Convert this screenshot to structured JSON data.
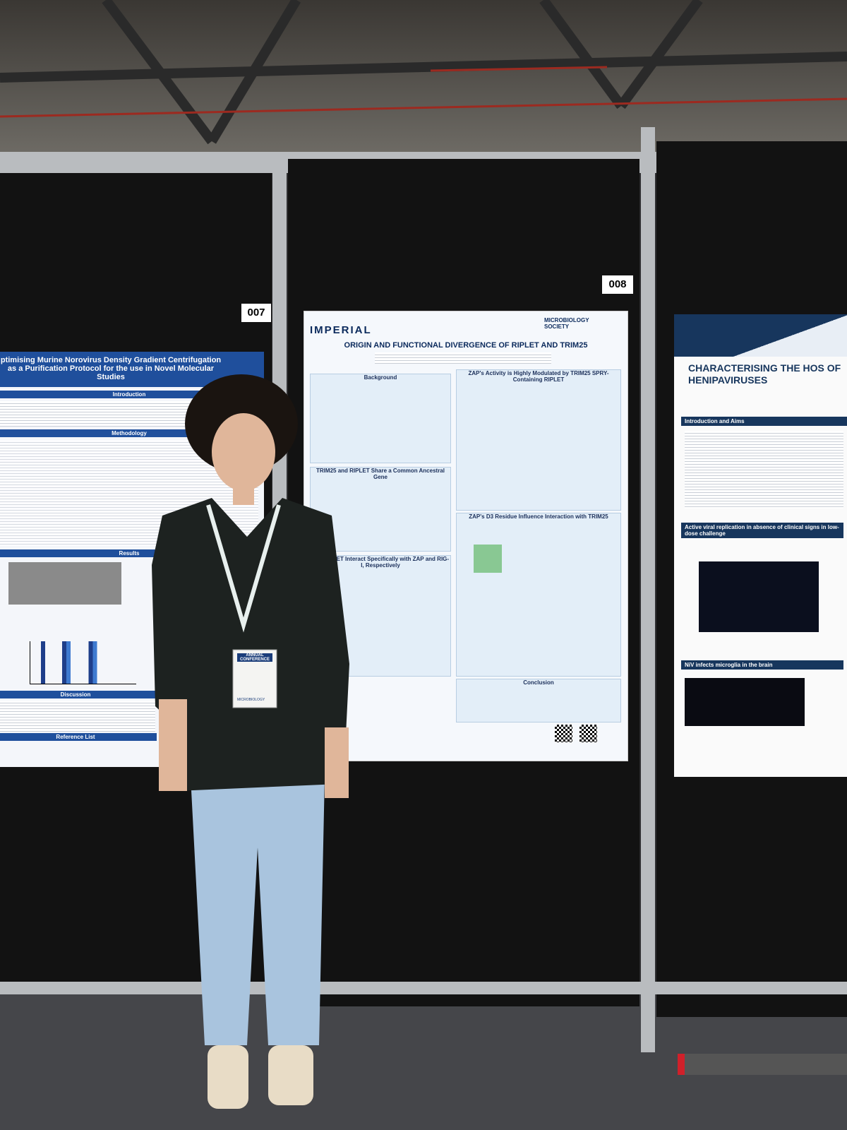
{
  "boards": [
    {
      "number": "007"
    },
    {
      "number": "008"
    }
  ],
  "posters": [
    {
      "title": "ptimising Murine Norovirus Density Gradient Centrifugation as a Purification Protocol for the use in Novel Molecular Studies",
      "sections": [
        "Introduction",
        "Methodology",
        "Results",
        "Discussion",
        "Reference List"
      ]
    },
    {
      "brand": "IMPERIAL",
      "society": "MICROBIOLOGY SOCIETY",
      "title": "ORIGIN AND FUNCTIONAL DIVERGENCE OF RIPLET AND TRIM25",
      "sections": [
        "Background",
        "ZAP's Activity is Highly Modulated by TRIM25 SPRY-Containing RIPLET",
        "TRIM25 and RIPLET Share a Common Ancestral Gene",
        "ZAP's D3 Residue Influence Interaction with TRIM25",
        "and RIPLET Interact Specifically with ZAP and RIG-I, Respectively",
        "Conclusion"
      ]
    },
    {
      "title": "CHARACTERISING THE HOS OF HENIPAVIRUSES",
      "sections": [
        "Introduction and Aims",
        "Active viral replication in absence of clinical signs in low-dose challenge",
        "NiV infects microglia in the brain"
      ]
    }
  ],
  "badge": {
    "event": "ANNUAL CONFERENCE",
    "society": "MICROBIOLOGY"
  }
}
